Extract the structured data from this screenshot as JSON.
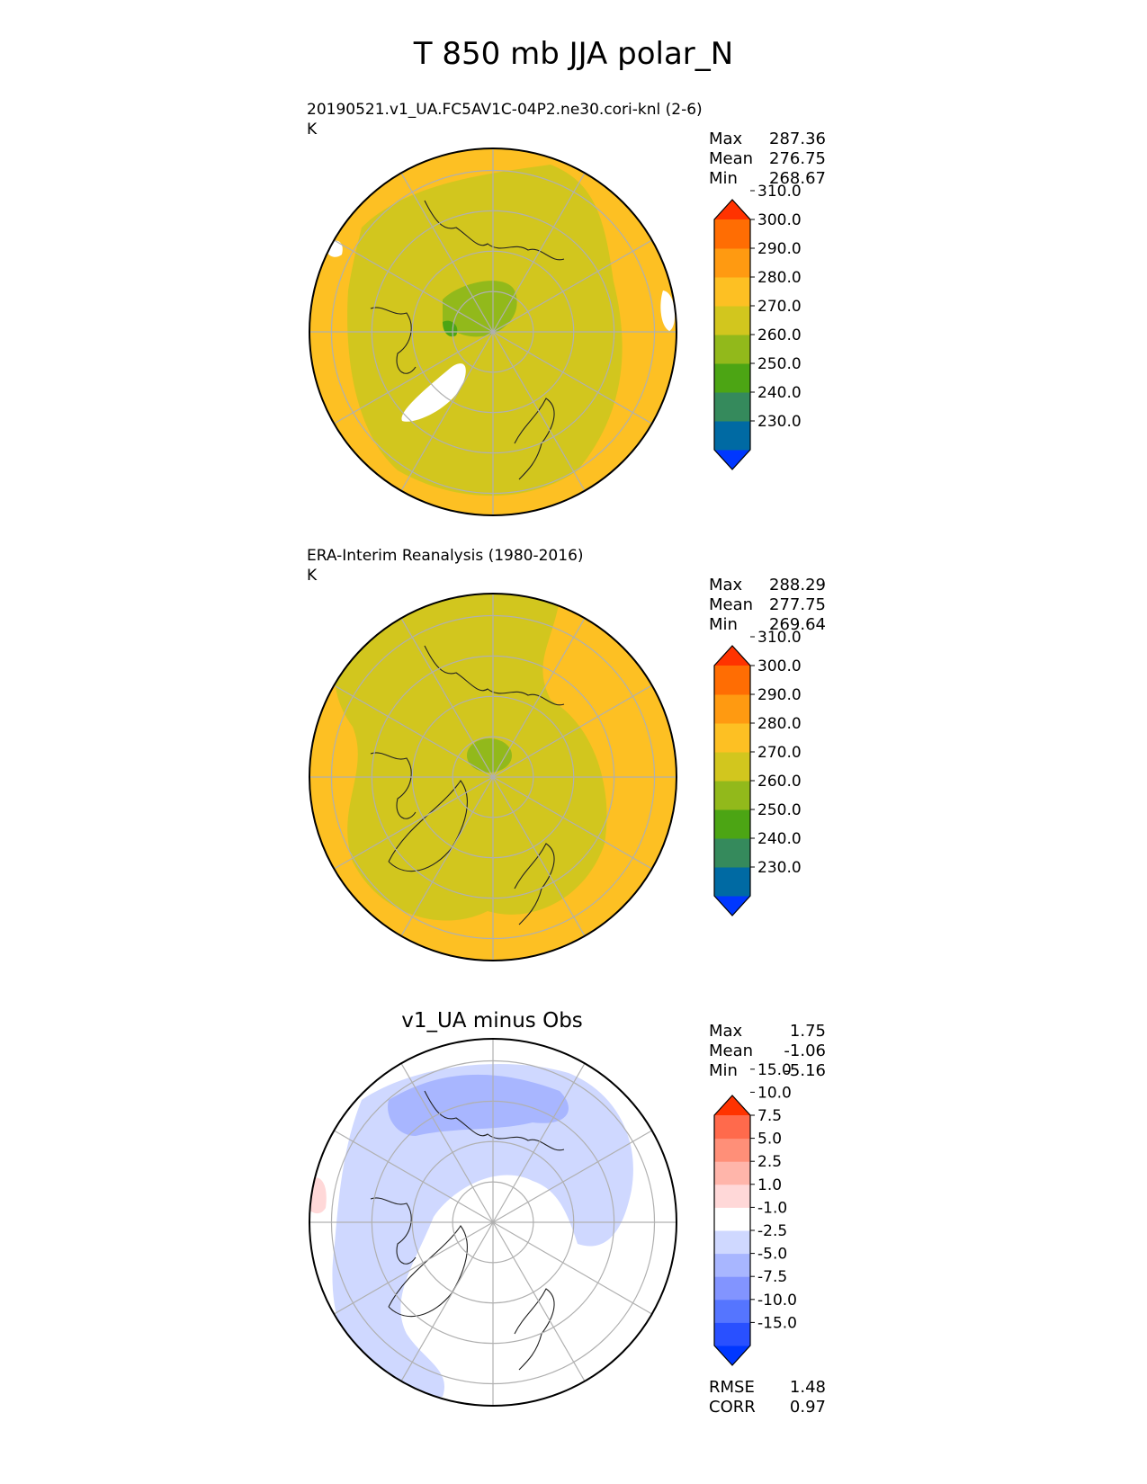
{
  "title": "T 850 mb JJA polar_N",
  "colors": {
    "abs_levels": [
      "#0037ff",
      "#006aa3",
      "#358a5c",
      "#4ca514",
      "#92b91b",
      "#d2c61e",
      "#fdc023",
      "#ff9a11",
      "#ff6d03",
      "#ff3300"
    ],
    "diff_levels": [
      "#0037ff",
      "#2950ff",
      "#5575ff",
      "#8294ff",
      "#a8b6ff",
      "#cfd8ff",
      "#ffffff",
      "#ffd8d8",
      "#ffb5aa",
      "#ff8f78",
      "#ff6a4c",
      "#ff3300"
    ],
    "grid": "#b0b0b0"
  },
  "chart_data": [
    {
      "type": "heatmap",
      "projection": "north-polar-stereographic",
      "title": "20190521.v1_UA.FC5AV1C-04P2.ne30.cori-knl (2-6)",
      "units": "K",
      "stats": {
        "max_label": "Max",
        "max": "287.36",
        "mean_label": "Mean",
        "mean": "276.75",
        "min_label": "Min",
        "min": "268.67"
      },
      "colorbar_ticks": [
        "230.0",
        "240.0",
        "250.0",
        "260.0",
        "270.0",
        "280.0",
        "290.0",
        "300.0",
        "310.0"
      ],
      "colorbar_extend": "both"
    },
    {
      "type": "heatmap",
      "projection": "north-polar-stereographic",
      "title": "ERA-Interim Reanalysis (1980-2016)",
      "units": "K",
      "stats": {
        "max_label": "Max",
        "max": "288.29",
        "mean_label": "Mean",
        "mean": "277.75",
        "min_label": "Min",
        "min": "269.64"
      },
      "colorbar_ticks": [
        "230.0",
        "240.0",
        "250.0",
        "260.0",
        "270.0",
        "280.0",
        "290.0",
        "300.0",
        "310.0"
      ],
      "colorbar_extend": "both"
    },
    {
      "type": "heatmap",
      "projection": "north-polar-stereographic",
      "title": "v1_UA minus Obs",
      "stats": {
        "max_label": "Max",
        "max": "1.75",
        "mean_label": "Mean",
        "mean": "-1.06",
        "min_label": "Min",
        "min": "-5.16"
      },
      "colorbar_ticks": [
        "-15.0",
        "-10.0",
        "-7.5",
        "-5.0",
        "-2.5",
        "-1.0",
        "1.0",
        "2.5",
        "5.0",
        "7.5",
        "10.0",
        "15.0"
      ],
      "colorbar_extend": "both",
      "metrics": {
        "rmse_label": "RMSE",
        "rmse": "1.48",
        "corr_label": "CORR",
        "corr": "0.97"
      }
    }
  ]
}
